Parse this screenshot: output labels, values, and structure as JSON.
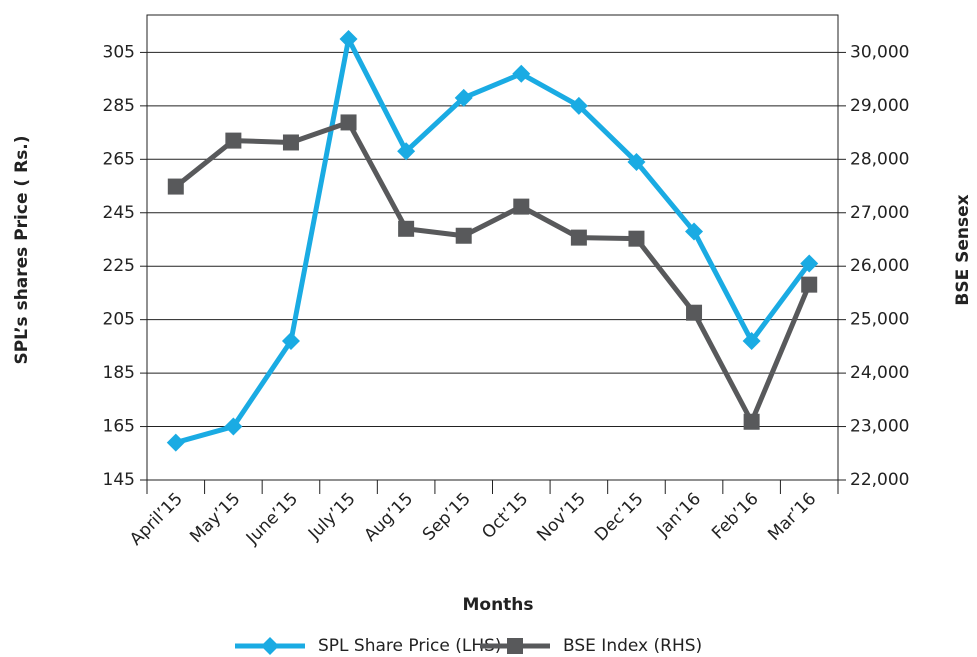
{
  "chart_data": {
    "type": "line",
    "y_label": "SPL’s shares Price ( Rs.)",
    "y2_label": "BSE Sensex",
    "x_label": "Months",
    "categories": [
      "April’15",
      "May’15",
      "June’15",
      "July’15",
      "Aug’15",
      "Sep’15",
      "Oct’15",
      "Nov’15",
      "Dec’15",
      "Jan’16",
      "Feb’16",
      "Mar’16"
    ],
    "series": [
      {
        "name": "SPL Share Price (LHS)",
        "color": "#1aabe3",
        "marker": "diamond",
        "values": [
          159,
          165,
          197,
          310,
          268,
          288,
          297,
          285,
          264,
          238,
          197,
          226
        ]
      },
      {
        "name": "BSE Index (RHS)",
        "color": "#58595b",
        "marker": "square",
        "axis": "y2",
        "values": [
          27490,
          28350,
          28315,
          28690,
          26700,
          26570,
          27115,
          26535,
          26515,
          25130,
          23090,
          25655
        ]
      }
    ],
    "ylim": [
      145,
      319
    ],
    "yticks": [
      145,
      165,
      185,
      205,
      225,
      245,
      265,
      285,
      305
    ],
    "y2lim": [
      22000,
      30700
    ],
    "y2ticks": [
      {
        "value": 22000,
        "label": "22,000"
      },
      {
        "value": 23000,
        "label": "23,000"
      },
      {
        "value": 24000,
        "label": "24,000"
      },
      {
        "value": 25000,
        "label": "25,000"
      },
      {
        "value": 26000,
        "label": "26,000"
      },
      {
        "value": 27000,
        "label": "27,000"
      },
      {
        "value": 28000,
        "label": "28,000"
      },
      {
        "value": 29000,
        "label": "29,000"
      },
      {
        "value": 30000,
        "label": "30,000"
      }
    ],
    "grid": true,
    "legend": "bottom"
  }
}
